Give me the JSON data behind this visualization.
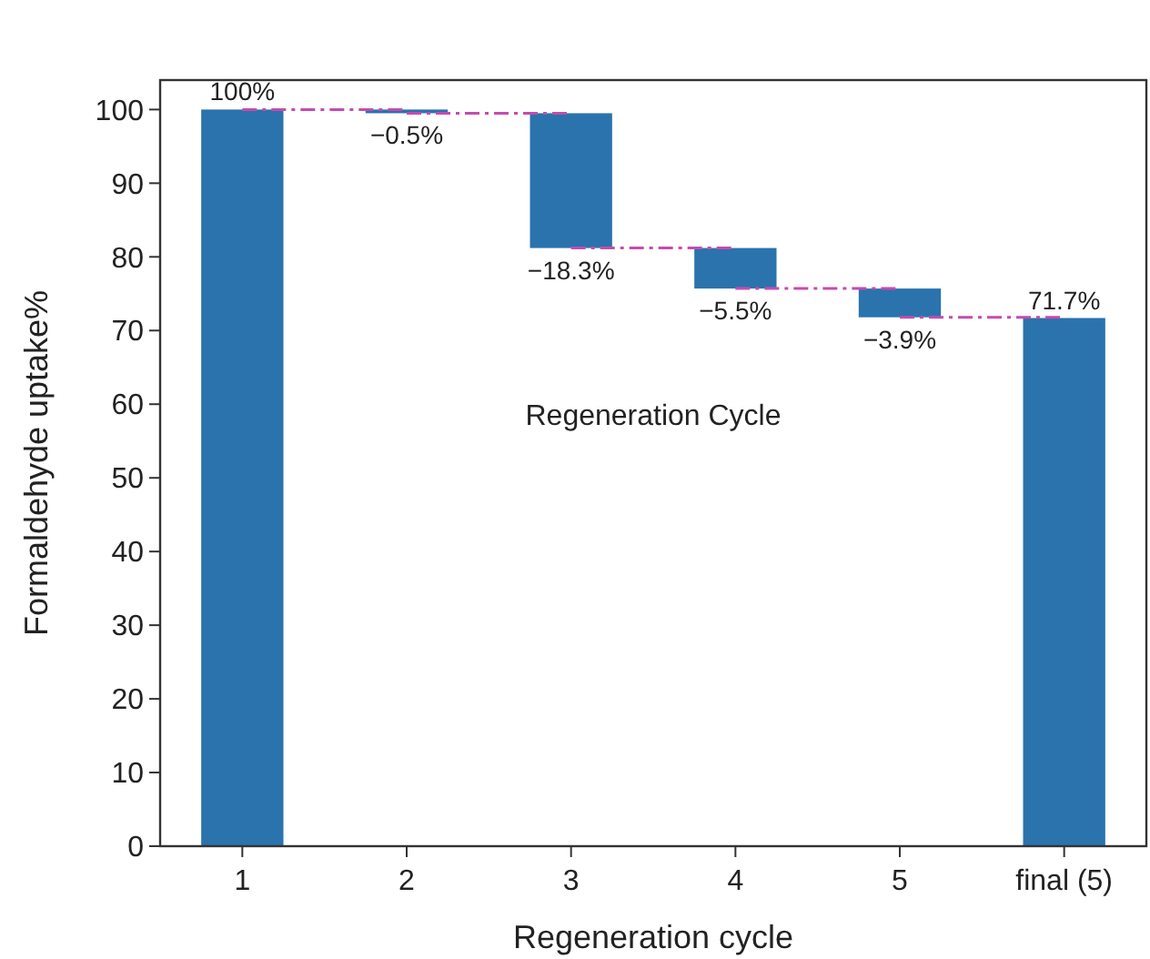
{
  "chart_data": {
    "type": "bar",
    "xlabel": "Regeneration cycle",
    "ylabel": "Formaldehyde uptake%",
    "categories": [
      "1",
      "2",
      "3",
      "4",
      "5",
      "final (5)"
    ],
    "values": [
      100,
      -0.5,
      -18.3,
      -5.5,
      -3.9,
      71.7
    ],
    "base": [
      0,
      100,
      99.5,
      81.2,
      75.7,
      0
    ],
    "value_labels": [
      "100%",
      "−0.5%",
      "−18.3%",
      "−5.5%",
      "−3.9%",
      "71.7%"
    ],
    "color": "#2a73ad",
    "ylim": [
      0,
      104
    ],
    "yticks": [
      0,
      10,
      20,
      30,
      40,
      50,
      60,
      70,
      80,
      90,
      100
    ],
    "annotations": [
      "Regeneration Cycle"
    ],
    "grid": false
  }
}
